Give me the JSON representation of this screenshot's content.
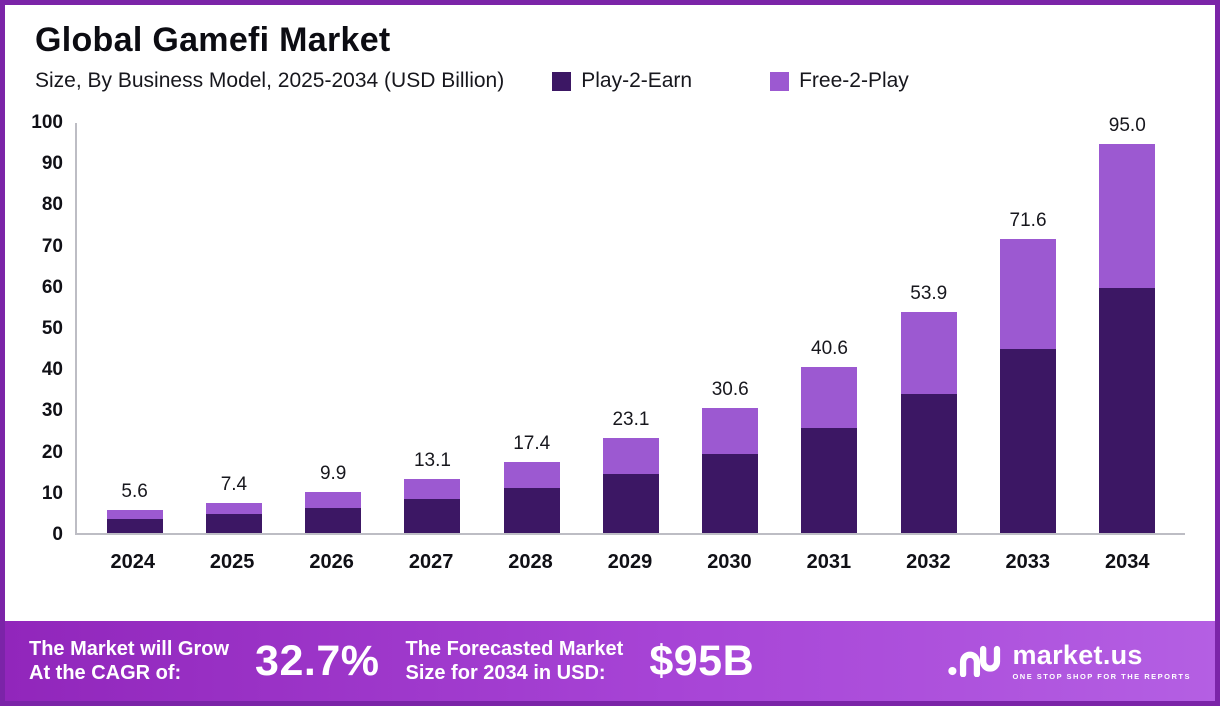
{
  "header": {
    "title": "Global Gamefi Market",
    "subtitle": "Size, By Business Model, 2025-2034 (USD Billion)"
  },
  "legend": [
    {
      "label": "Play-2-Earn",
      "color": "#3c1764"
    },
    {
      "label": "Free-2-Play",
      "color": "#9c59d1"
    }
  ],
  "chart_data": {
    "type": "bar",
    "stacked": true,
    "title": "Global Gamefi Market",
    "subtitle": "Size, By Business Model, 2025-2034 (USD Billion)",
    "categories": [
      "2024",
      "2025",
      "2026",
      "2027",
      "2028",
      "2029",
      "2030",
      "2031",
      "2032",
      "2033",
      "2034"
    ],
    "series": [
      {
        "name": "Play-2-Earn",
        "color": "#3c1764",
        "values": [
          3.5,
          4.7,
          6.2,
          8.2,
          10.9,
          14.5,
          19.2,
          25.5,
          33.9,
          45.0,
          59.8
        ]
      },
      {
        "name": "Free-2-Play",
        "color": "#9c59d1",
        "values": [
          2.1,
          2.7,
          3.7,
          4.9,
          6.5,
          8.6,
          11.4,
          15.1,
          20.0,
          26.6,
          35.2
        ]
      }
    ],
    "totals": [
      5.6,
      7.4,
      9.9,
      13.1,
      17.4,
      23.1,
      30.6,
      40.6,
      53.9,
      71.6,
      95.0
    ],
    "xlabel": "",
    "ylabel": "",
    "ylim": [
      0,
      100
    ],
    "yticks": [
      0,
      10,
      20,
      30,
      40,
      50,
      60,
      70,
      80,
      90,
      100
    ],
    "grid": false,
    "legend_position": "top"
  },
  "footer": {
    "cagr_label_line1": "The Market will Grow",
    "cagr_label_line2": "At the CAGR of:",
    "cagr_value": "32.7%",
    "forecast_label_line1": "The Forecasted Market",
    "forecast_label_line2": "Size for 2034 in USD:",
    "forecast_value": "$95B",
    "brand_name": "market.us",
    "brand_tagline": "ONE STOP SHOP FOR THE REPORTS"
  }
}
